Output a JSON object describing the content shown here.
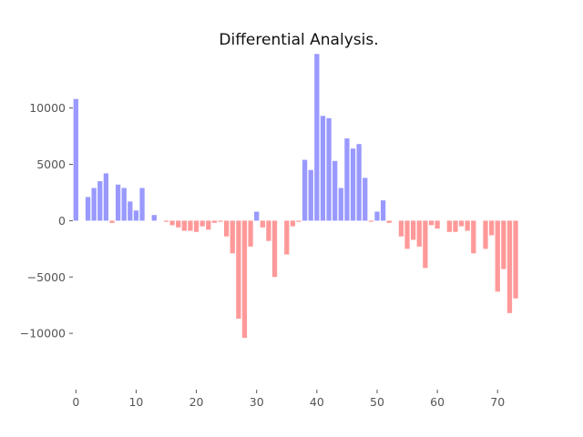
{
  "chart_data": {
    "type": "bar",
    "title": "Differential Analysis.",
    "xlabel": "",
    "ylabel": "",
    "xlim": [
      -0.5,
      74.5
    ],
    "ylim": [
      -15000,
      14900
    ],
    "grid": false,
    "legend": "none",
    "x_ticks": [
      0,
      10,
      20,
      30,
      40,
      50,
      60,
      70
    ],
    "y_ticks": [
      -10000,
      -5000,
      0,
      5000,
      10000
    ],
    "x_tick_labels": [
      "0",
      "10",
      "20",
      "30",
      "40",
      "50",
      "60",
      "70"
    ],
    "y_tick_labels": [
      "−10000",
      "−5000",
      "0",
      "5000",
      "10000"
    ],
    "positive_color": "#9999ff",
    "negative_color": "#ff9999",
    "x": [
      0,
      1,
      2,
      3,
      4,
      5,
      6,
      7,
      8,
      9,
      10,
      11,
      12,
      13,
      14,
      15,
      16,
      17,
      18,
      19,
      20,
      21,
      22,
      23,
      24,
      25,
      26,
      27,
      28,
      29,
      30,
      31,
      32,
      33,
      34,
      35,
      36,
      37,
      38,
      39,
      40,
      41,
      42,
      43,
      44,
      45,
      46,
      47,
      48,
      49,
      50,
      51,
      52,
      53,
      54,
      55,
      56,
      57,
      58,
      59,
      60,
      61,
      62,
      63,
      64,
      65,
      66,
      67,
      68,
      69,
      70,
      71,
      72,
      73,
      74
    ],
    "values": [
      10800,
      0,
      2100,
      2900,
      3500,
      4200,
      -200,
      3200,
      2900,
      1700,
      900,
      2900,
      0,
      500,
      0,
      -100,
      -400,
      -600,
      -900,
      -900,
      -1000,
      -500,
      -800,
      -200,
      -100,
      -1400,
      -2900,
      -8700,
      -10400,
      -2300,
      800,
      -600,
      -1800,
      -5000,
      0,
      -3000,
      -500,
      -100,
      5400,
      4500,
      14800,
      9300,
      9100,
      5300,
      2900,
      7300,
      6400,
      6800,
      3800,
      -100,
      800,
      1800,
      -200,
      0,
      -1400,
      -2500,
      -1700,
      -2300,
      -4200,
      -400,
      -700,
      0,
      -1000,
      -1000,
      -500,
      -900,
      -2900,
      0,
      -2500,
      -1300,
      -6300,
      -4300,
      -8200,
      -6900,
      0
    ]
  }
}
